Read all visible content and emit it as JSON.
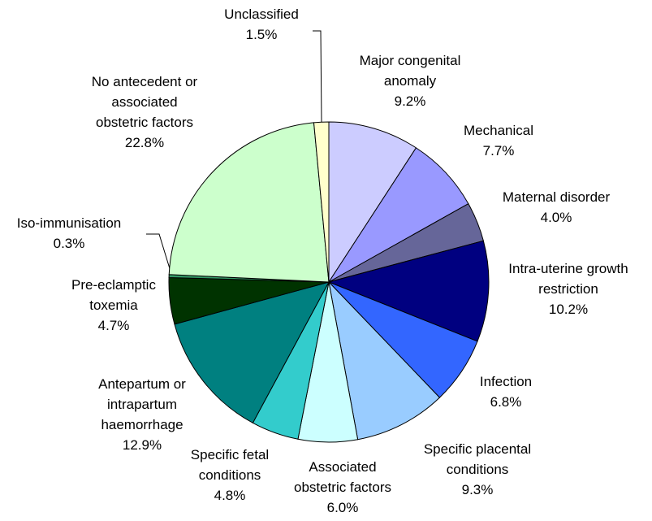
{
  "chart_data": {
    "type": "pie",
    "categories": [
      "Major congenital anomaly",
      "Mechanical",
      "Maternal disorder",
      "Intra-uterine growth restriction",
      "Infection",
      "Specific placental conditions",
      "Associated obstetric factors",
      "Specific fetal conditions",
      "Antepartum or intrapartum haemorrhage",
      "Pre-eclamptic toxemia",
      "Iso-immunisation",
      "No antecedent or associated obstetric factors",
      "Unclassified"
    ],
    "values": [
      9.2,
      7.7,
      4.0,
      10.2,
      6.8,
      9.3,
      6.0,
      4.8,
      12.9,
      4.7,
      0.3,
      22.8,
      1.5
    ],
    "value_labels": [
      "9.2%",
      "7.7%",
      "4.0%",
      "10.2%",
      "6.8%",
      "9.3%",
      "6.0%",
      "4.8%",
      "12.9%",
      "4.7%",
      "0.3%",
      "22.8%",
      "1.5%"
    ],
    "colors": [
      "#ccccff",
      "#9999ff",
      "#666699",
      "#000080",
      "#3366ff",
      "#99ccff",
      "#ccffff",
      "#33cccc",
      "#008080",
      "#003300",
      "#339966",
      "#ccffcc",
      "#ffffcc"
    ]
  }
}
